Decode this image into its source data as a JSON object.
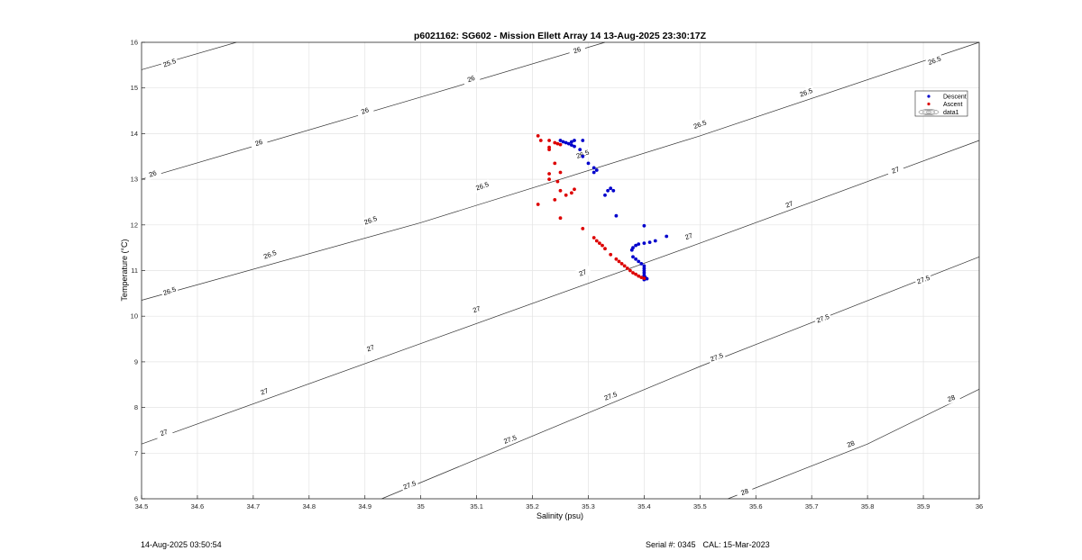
{
  "footer": {
    "timestamp": "14-Aug-2025 03:50:54",
    "serial": "Serial #: 0345",
    "cal": "CAL: 15-Mar-2023"
  },
  "chart_data": {
    "type": "scatter",
    "title": "p6021162: SG602 - Mission Ellett Array 14 13-Aug-2025 23:30:17Z",
    "xlabel": "Salinity (psu)",
    "ylabel": "Temperature (°C)",
    "xlim": [
      34.5,
      36
    ],
    "ylim": [
      6,
      16
    ],
    "xticks": [
      "34.5",
      "34.6",
      "34.7",
      "34.8",
      "34.9",
      "35",
      "35.1",
      "35.2",
      "35.3",
      "35.4",
      "35.5",
      "35.6",
      "35.7",
      "35.8",
      "35.9",
      "36"
    ],
    "yticks": [
      "6",
      "7",
      "8",
      "9",
      "10",
      "11",
      "12",
      "13",
      "14",
      "15",
      "16"
    ],
    "grid": true,
    "legend_position": "top-right",
    "legend": [
      {
        "name": "Descent",
        "color": "#0000cc",
        "marker": "dot"
      },
      {
        "name": "Ascent",
        "color": "#dd0000",
        "marker": "dot"
      },
      {
        "name": "data1",
        "marker": "contour"
      }
    ],
    "contours": [
      {
        "sigma": 25.5,
        "label": "25.5",
        "points": [
          [
            34.5,
            15.4
          ],
          [
            34.67,
            16.0
          ]
        ],
        "labels_at": [
          [
            34.55,
            15.55
          ]
        ]
      },
      {
        "sigma": 26,
        "label": "26",
        "points": [
          [
            34.5,
            13.0
          ],
          [
            35.0,
            14.8
          ],
          [
            35.33,
            16.0
          ]
        ],
        "labels_at": [
          [
            34.52,
            13.12
          ],
          [
            34.71,
            13.8
          ],
          [
            34.9,
            14.5
          ],
          [
            35.09,
            15.2
          ],
          [
            35.28,
            15.83
          ]
        ]
      },
      {
        "sigma": 26.5,
        "label": "26.5",
        "points": [
          [
            34.5,
            10.35
          ],
          [
            35.0,
            12.05
          ],
          [
            35.5,
            13.95
          ],
          [
            36.0,
            16.0
          ]
        ],
        "labels_at": [
          [
            34.55,
            10.55
          ],
          [
            34.73,
            11.35
          ],
          [
            34.91,
            12.1
          ],
          [
            35.11,
            12.85
          ],
          [
            35.29,
            13.55
          ],
          [
            35.5,
            14.2
          ],
          [
            35.69,
            14.9
          ],
          [
            35.92,
            15.6
          ]
        ]
      },
      {
        "sigma": 27,
        "label": "27",
        "points": [
          [
            34.5,
            7.2
          ],
          [
            35.0,
            9.4
          ],
          [
            35.5,
            11.6
          ],
          [
            36.0,
            13.85
          ]
        ],
        "labels_at": [
          [
            34.54,
            7.45
          ],
          [
            34.72,
            8.35
          ],
          [
            34.91,
            9.3
          ],
          [
            35.1,
            10.15
          ],
          [
            35.29,
            10.95
          ],
          [
            35.48,
            11.75
          ],
          [
            35.66,
            12.45
          ],
          [
            35.85,
            13.2
          ]
        ]
      },
      {
        "sigma": 27.5,
        "label": "27.5",
        "points": [
          [
            34.93,
            6.0
          ],
          [
            35.5,
            8.9
          ],
          [
            36.0,
            11.3
          ]
        ],
        "labels_at": [
          [
            34.98,
            6.3
          ],
          [
            35.16,
            7.3
          ],
          [
            35.34,
            8.25
          ],
          [
            35.53,
            9.1
          ],
          [
            35.72,
            9.95
          ],
          [
            35.9,
            10.8
          ]
        ]
      },
      {
        "sigma": 28,
        "label": "28",
        "points": [
          [
            35.55,
            6.0
          ],
          [
            35.8,
            7.2
          ],
          [
            36.0,
            8.4
          ]
        ],
        "labels_at": [
          [
            35.58,
            6.15
          ],
          [
            35.77,
            7.2
          ],
          [
            35.95,
            8.2
          ]
        ]
      }
    ],
    "series": [
      {
        "name": "Descent",
        "color": "#0000cc",
        "points": [
          [
            35.25,
            13.85
          ],
          [
            35.255,
            13.82
          ],
          [
            35.26,
            13.8
          ],
          [
            35.265,
            13.78
          ],
          [
            35.27,
            13.75
          ],
          [
            35.275,
            13.72
          ],
          [
            35.27,
            13.82
          ],
          [
            35.275,
            13.85
          ],
          [
            35.29,
            13.85
          ],
          [
            35.285,
            13.65
          ],
          [
            35.29,
            13.5
          ],
          [
            35.3,
            13.35
          ],
          [
            35.31,
            13.25
          ],
          [
            35.31,
            13.15
          ],
          [
            35.315,
            13.2
          ],
          [
            35.33,
            12.65
          ],
          [
            35.335,
            12.75
          ],
          [
            35.34,
            12.8
          ],
          [
            35.345,
            12.75
          ],
          [
            35.35,
            12.2
          ],
          [
            35.4,
            11.98
          ],
          [
            35.44,
            11.75
          ],
          [
            35.42,
            11.65
          ],
          [
            35.41,
            11.62
          ],
          [
            35.4,
            11.6
          ],
          [
            35.39,
            11.58
          ],
          [
            35.385,
            11.55
          ],
          [
            35.38,
            11.5
          ],
          [
            35.378,
            11.45
          ],
          [
            35.38,
            11.3
          ],
          [
            35.385,
            11.25
          ],
          [
            35.39,
            11.2
          ],
          [
            35.395,
            11.15
          ],
          [
            35.4,
            11.1
          ],
          [
            35.4,
            11.05
          ],
          [
            35.4,
            11.0
          ],
          [
            35.4,
            10.95
          ],
          [
            35.4,
            10.9
          ],
          [
            35.4,
            10.87
          ],
          [
            35.402,
            10.85
          ],
          [
            35.405,
            10.82
          ],
          [
            35.4,
            10.8
          ]
        ]
      },
      {
        "name": "Ascent",
        "color": "#dd0000",
        "points": [
          [
            35.21,
            13.95
          ],
          [
            35.215,
            13.85
          ],
          [
            35.23,
            13.85
          ],
          [
            35.24,
            13.8
          ],
          [
            35.245,
            13.78
          ],
          [
            35.25,
            13.76
          ],
          [
            35.23,
            13.7
          ],
          [
            35.23,
            13.65
          ],
          [
            35.24,
            13.35
          ],
          [
            35.25,
            13.15
          ],
          [
            35.23,
            13.12
          ],
          [
            35.23,
            13.0
          ],
          [
            35.245,
            12.95
          ],
          [
            35.25,
            12.75
          ],
          [
            35.275,
            12.78
          ],
          [
            35.27,
            12.7
          ],
          [
            35.26,
            12.65
          ],
          [
            35.24,
            12.55
          ],
          [
            35.21,
            12.45
          ],
          [
            35.25,
            12.15
          ],
          [
            35.29,
            11.92
          ],
          [
            35.31,
            11.72
          ],
          [
            35.315,
            11.65
          ],
          [
            35.32,
            11.6
          ],
          [
            35.325,
            11.55
          ],
          [
            35.33,
            11.48
          ],
          [
            35.34,
            11.35
          ],
          [
            35.35,
            11.25
          ],
          [
            35.355,
            11.2
          ],
          [
            35.36,
            11.15
          ],
          [
            35.365,
            11.1
          ],
          [
            35.37,
            11.05
          ],
          [
            35.375,
            11.0
          ],
          [
            35.38,
            10.95
          ],
          [
            35.385,
            10.92
          ],
          [
            35.39,
            10.88
          ],
          [
            35.395,
            10.85
          ],
          [
            35.4,
            10.83
          ]
        ]
      }
    ]
  }
}
